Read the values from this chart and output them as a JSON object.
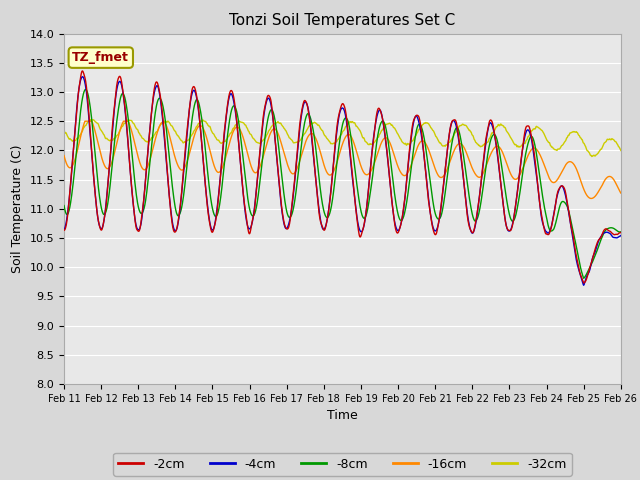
{
  "title": "Tonzi Soil Temperatures Set C",
  "xlabel": "Time",
  "ylabel": "Soil Temperature (C)",
  "ylim": [
    8.0,
    14.0
  ],
  "yticks": [
    8.0,
    8.5,
    9.0,
    9.5,
    10.0,
    10.5,
    11.0,
    11.5,
    12.0,
    12.5,
    13.0,
    13.5,
    14.0
  ],
  "x_labels": [
    "Feb 11",
    "Feb 12",
    "Feb 13",
    "Feb 14",
    "Feb 15",
    "Feb 16",
    "Feb 17",
    "Feb 18",
    "Feb 19",
    "Feb 20",
    "Feb 21",
    "Feb 22",
    "Feb 23",
    "Feb 24",
    "Feb 25",
    "Feb 26"
  ],
  "line_colors": {
    "-2cm": "#cc0000",
    "-4cm": "#0000cc",
    "-8cm": "#009900",
    "-16cm": "#ff8800",
    "-32cm": "#cccc00"
  },
  "fig_bg": "#d8d8d8",
  "ax_bg": "#e8e8e8",
  "grid_color": "#ffffff",
  "annotation_text": "TZ_fmet",
  "legend_box_facecolor": "#ffffcc",
  "legend_box_edgecolor": "#999900",
  "n_points": 1440
}
